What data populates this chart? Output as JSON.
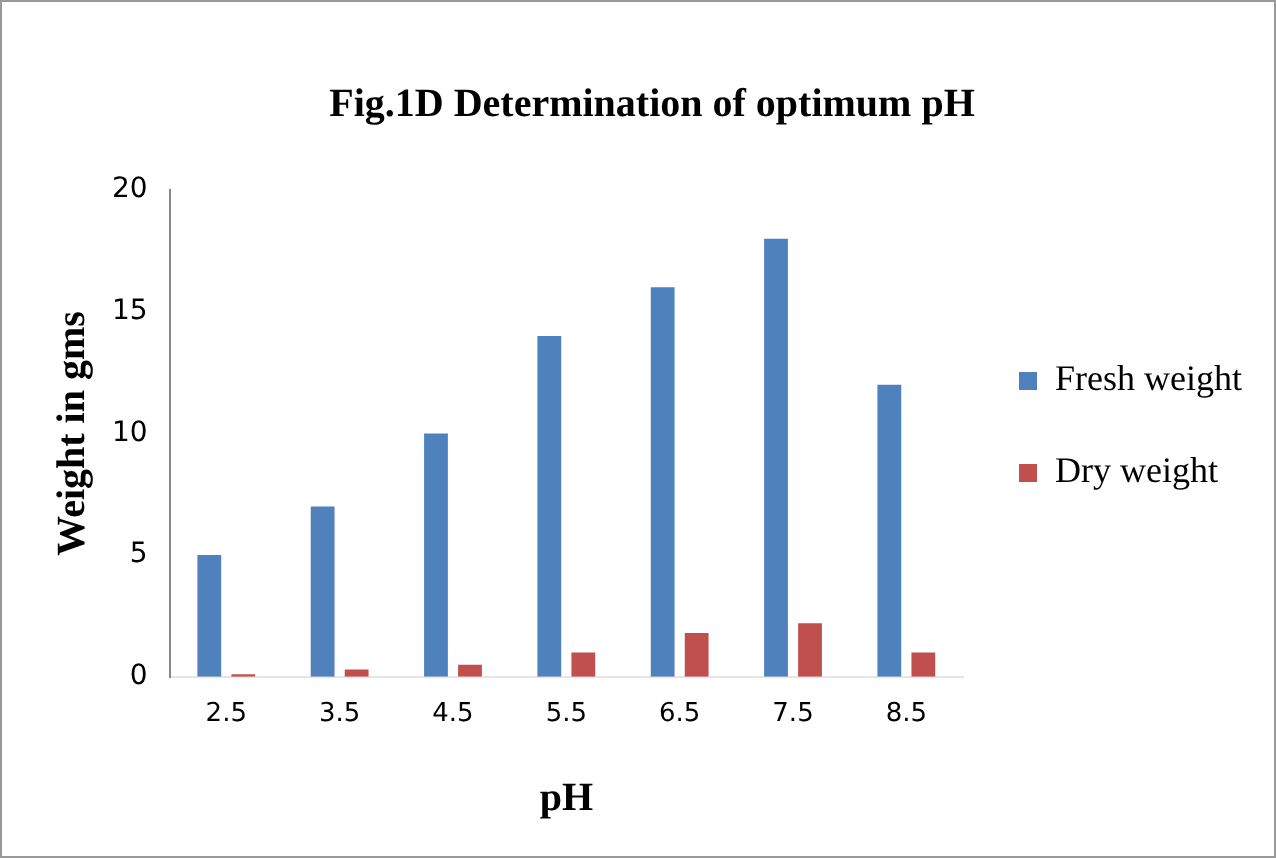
{
  "chart_data": {
    "type": "bar",
    "title": "Fig.1D Determination of optimum pH",
    "xlabel": "pH",
    "ylabel": "Weight in gms",
    "categories": [
      "2.5",
      "3.5",
      "4.5",
      "5.5",
      "6.5",
      "7.5",
      "8.5"
    ],
    "series": [
      {
        "name": "Fresh weight",
        "color": "#4f81bd",
        "values": [
          5,
          7,
          10,
          14,
          16,
          18,
          12
        ]
      },
      {
        "name": "Dry weight",
        "color": "#c0504d",
        "values": [
          0.1,
          0.3,
          0.5,
          1,
          1.8,
          2.2,
          1
        ]
      }
    ],
    "ylim": [
      0,
      20
    ],
    "yticks": [
      0,
      5,
      10,
      15,
      20
    ],
    "grid": false,
    "legend": "right"
  }
}
